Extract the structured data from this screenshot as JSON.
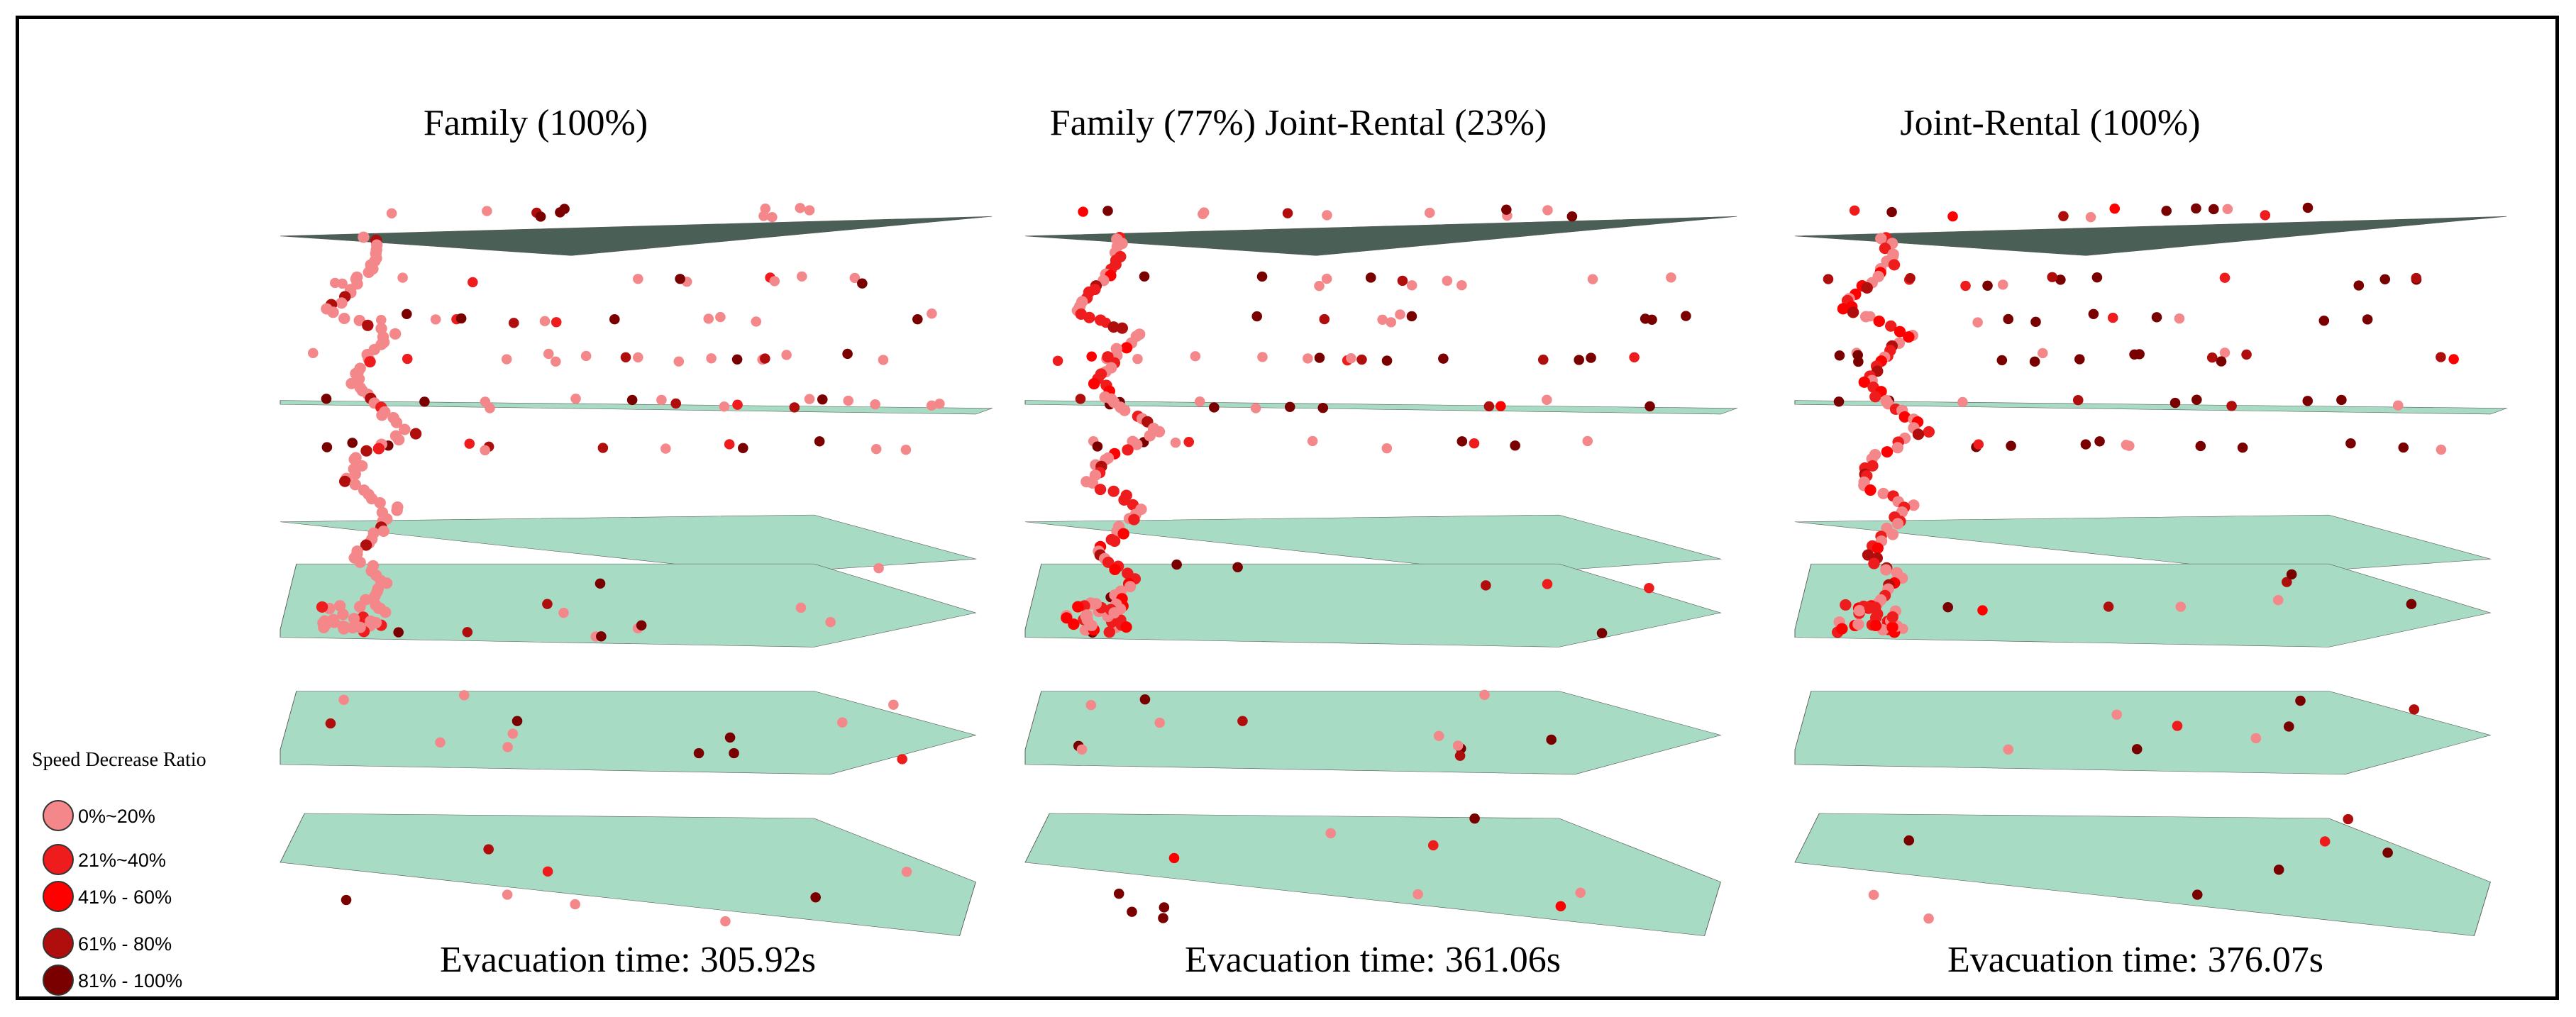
{
  "figure": {
    "panels": [
      {
        "title": "Family (100%)",
        "evacuation": "Evacuation time: 305.92s",
        "seed": 11,
        "stair_color_weights": [
          0.9,
          0.1,
          0,
          0,
          0
        ],
        "route_weights": [
          0.9,
          0.05,
          0,
          0.05,
          0
        ],
        "scatter_weights": [
          0.45,
          0.05,
          0,
          0.15,
          0.35
        ]
      },
      {
        "title": "Family (77%) Joint-Rental (23%)",
        "evacuation": "Evacuation time: 361.06s",
        "seed": 23,
        "stair_color_weights": [
          0.55,
          0.3,
          0.15,
          0,
          0
        ],
        "route_weights": [
          0.45,
          0.3,
          0.15,
          0.1,
          0
        ],
        "scatter_weights": [
          0.35,
          0.1,
          0.05,
          0.15,
          0.35
        ]
      },
      {
        "title": "Joint-Rental (100%)",
        "evacuation": "Evacuation time: 376.07s",
        "seed": 37,
        "stair_color_weights": [
          0.3,
          0.45,
          0.25,
          0,
          0
        ],
        "route_weights": [
          0.35,
          0.35,
          0.15,
          0.15,
          0
        ],
        "scatter_weights": [
          0.25,
          0.1,
          0.05,
          0.2,
          0.4
        ]
      }
    ]
  },
  "legend": {
    "title": "Speed Decrease Ratio",
    "items": [
      {
        "label": "0%~20%",
        "color": "#f4878a"
      },
      {
        "label": "21%~40%",
        "color": "#ee1c1c"
      },
      {
        "label": "41% - 60%",
        "color": "#ff0000"
      },
      {
        "label": "61% - 80%",
        "color": "#b00d0d"
      },
      {
        "label": "81% - 100%",
        "color": "#7a0000"
      }
    ]
  },
  "colors": {
    "roof": "#4a5f56",
    "floor": "#a8dbc3",
    "floor_edge": "#555555"
  }
}
